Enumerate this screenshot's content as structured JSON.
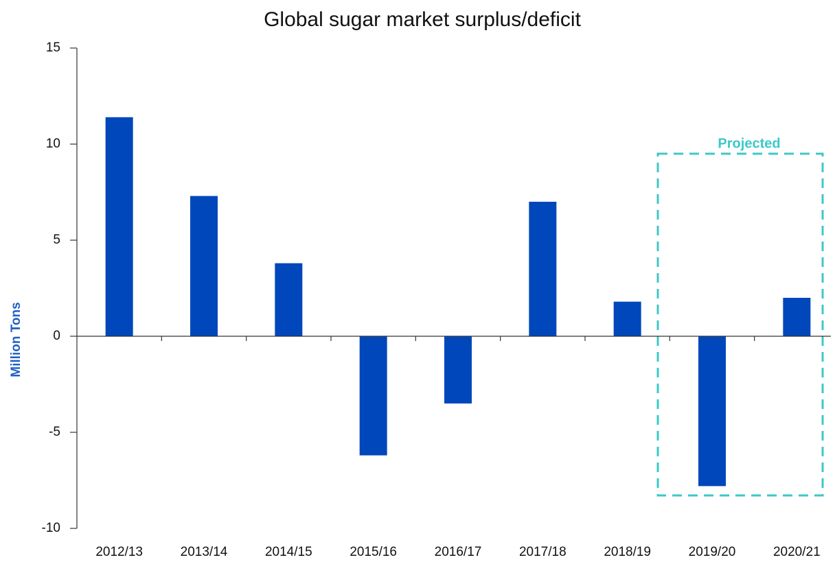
{
  "chart_data": {
    "type": "bar",
    "title": "Global sugar market surplus/deficit",
    "ylabel": "Million Tons",
    "categories": [
      "2012/13",
      "2013/14",
      "2014/15",
      "2015/16",
      "2016/17",
      "2017/18",
      "2018/19",
      "2019/20",
      "2020/21"
    ],
    "values": [
      11.4,
      7.3,
      3.8,
      -6.2,
      -3.5,
      7.0,
      1.8,
      -7.8,
      2.0
    ],
    "color": "#0047bb",
    "ylim": [
      -10,
      15
    ],
    "yticks": [
      -10,
      -5,
      0,
      5,
      10,
      15
    ],
    "grid": false,
    "annotation": "Projected"
  }
}
